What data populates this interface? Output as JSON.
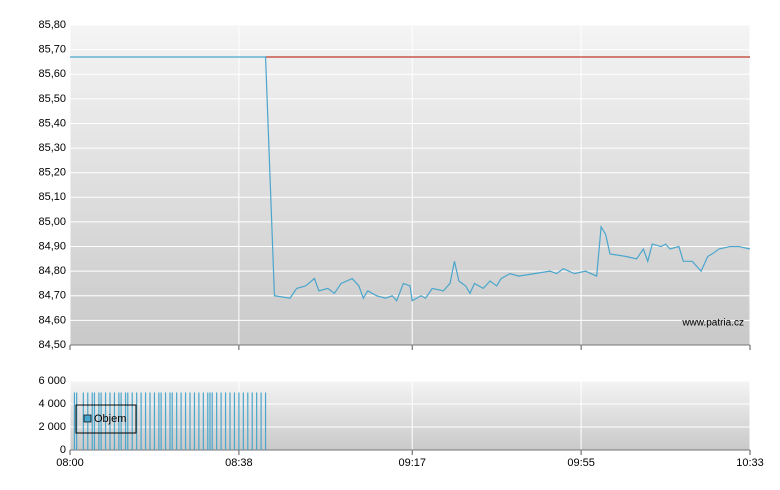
{
  "chart_data": [
    {
      "type": "line",
      "annotation": "www.patria.cz",
      "ylim": [
        84.5,
        85.8
      ],
      "yticks": [
        {
          "value": 84.5,
          "label": "84,50"
        },
        {
          "value": 84.6,
          "label": "84,60"
        },
        {
          "value": 84.7,
          "label": "84,70"
        },
        {
          "value": 84.8,
          "label": "84,80"
        },
        {
          "value": 84.9,
          "label": "84,90"
        },
        {
          "value": 85.0,
          "label": "85,00"
        },
        {
          "value": 85.1,
          "label": "85,10"
        },
        {
          "value": 85.2,
          "label": "85,20"
        },
        {
          "value": 85.3,
          "label": "85,30"
        },
        {
          "value": 85.4,
          "label": "85,40"
        },
        {
          "value": 85.5,
          "label": "85,50"
        },
        {
          "value": 85.6,
          "label": "85,60"
        },
        {
          "value": 85.7,
          "label": "85,70"
        },
        {
          "value": 85.8,
          "label": "85,80"
        }
      ],
      "grid": true,
      "series": [
        {
          "color": "#c0392b",
          "x": [
            524,
            633
          ],
          "values": [
            85.67,
            85.67
          ]
        },
        {
          "color": "#4aa6cc",
          "x": [
            480,
            524,
            526,
            529.5,
            531,
            533,
            535,
            536,
            538,
            539.5,
            541,
            543.5,
            545,
            546,
            547,
            549,
            551,
            552.5,
            553.5,
            555,
            556.5,
            557,
            559,
            560,
            561.5,
            564,
            565.5,
            566.5,
            567.5,
            569,
            570,
            571,
            573,
            574.5,
            576,
            577,
            579,
            581,
            584.5,
            588,
            589.5,
            591,
            593.5,
            596,
            598.5,
            599.5,
            600.5,
            601.5,
            605,
            607.5,
            609,
            610,
            611,
            613,
            614,
            615,
            617,
            618,
            620,
            621,
            622,
            623.5,
            624.5,
            626,
            628.5,
            630.5,
            633
          ],
          "values": [
            85.67,
            85.67,
            84.7,
            84.69,
            84.73,
            84.74,
            84.77,
            84.72,
            84.73,
            84.71,
            84.75,
            84.77,
            84.74,
            84.69,
            84.72,
            84.7,
            84.69,
            84.7,
            84.68,
            84.75,
            84.74,
            84.68,
            84.7,
            84.69,
            84.73,
            84.72,
            84.75,
            84.84,
            84.76,
            84.74,
            84.71,
            84.75,
            84.73,
            84.76,
            84.74,
            84.77,
            84.79,
            84.78,
            84.79,
            84.8,
            84.79,
            84.81,
            84.79,
            84.8,
            84.78,
            84.98,
            84.95,
            84.87,
            84.86,
            84.85,
            84.89,
            84.84,
            84.91,
            84.9,
            84.91,
            84.89,
            84.9,
            84.84,
            84.84,
            84.82,
            84.8,
            84.86,
            84.87,
            84.89,
            84.9,
            84.9,
            84.89
          ]
        }
      ]
    },
    {
      "type": "bar",
      "xlim": [
        480,
        633
      ],
      "xticks": [
        {
          "value": 480,
          "label": "08:00"
        },
        {
          "value": 518,
          "label": "08:38"
        },
        {
          "value": 557,
          "label": "09:17"
        },
        {
          "value": 595,
          "label": "09:55"
        },
        {
          "value": 633,
          "label": "10:33"
        }
      ],
      "ylim": [
        0,
        6000
      ],
      "yticks": [
        0,
        {
          "value": 2000,
          "label": "2 000"
        },
        {
          "value": 4000,
          "label": "4 000"
        },
        {
          "value": 6000,
          "label": "6 000"
        }
      ],
      "grid": true,
      "legend": "upper left",
      "series": [
        {
          "name": "Objem",
          "color": "#4aa6cc",
          "x": [
            481,
            481.5,
            483,
            484,
            485,
            485.5,
            486.5,
            487,
            488,
            489,
            490,
            491,
            491.5,
            492.5,
            493,
            494,
            495,
            496,
            497,
            498,
            499,
            500,
            500.5,
            501.5,
            502.5,
            503,
            504,
            505,
            506,
            507,
            508,
            509,
            510,
            511,
            511.5,
            512,
            513,
            514,
            515,
            516,
            517,
            518,
            519,
            520,
            521,
            522,
            523,
            524
          ],
          "values": [
            5000,
            5000,
            5000,
            5000,
            5000,
            5000,
            5000,
            5000,
            5000,
            5000,
            5000,
            5000,
            5000,
            5000,
            5000,
            5000,
            5000,
            5000,
            5000,
            5000,
            5000,
            5000,
            5000,
            5000,
            5000,
            5000,
            5000,
            5000,
            5000,
            5000,
            5000,
            5000,
            5000,
            5000,
            5000,
            5000,
            5000,
            5000,
            5000,
            5000,
            5000,
            5000,
            5000,
            5000,
            5000,
            5000,
            5000,
            5000
          ]
        }
      ]
    }
  ]
}
